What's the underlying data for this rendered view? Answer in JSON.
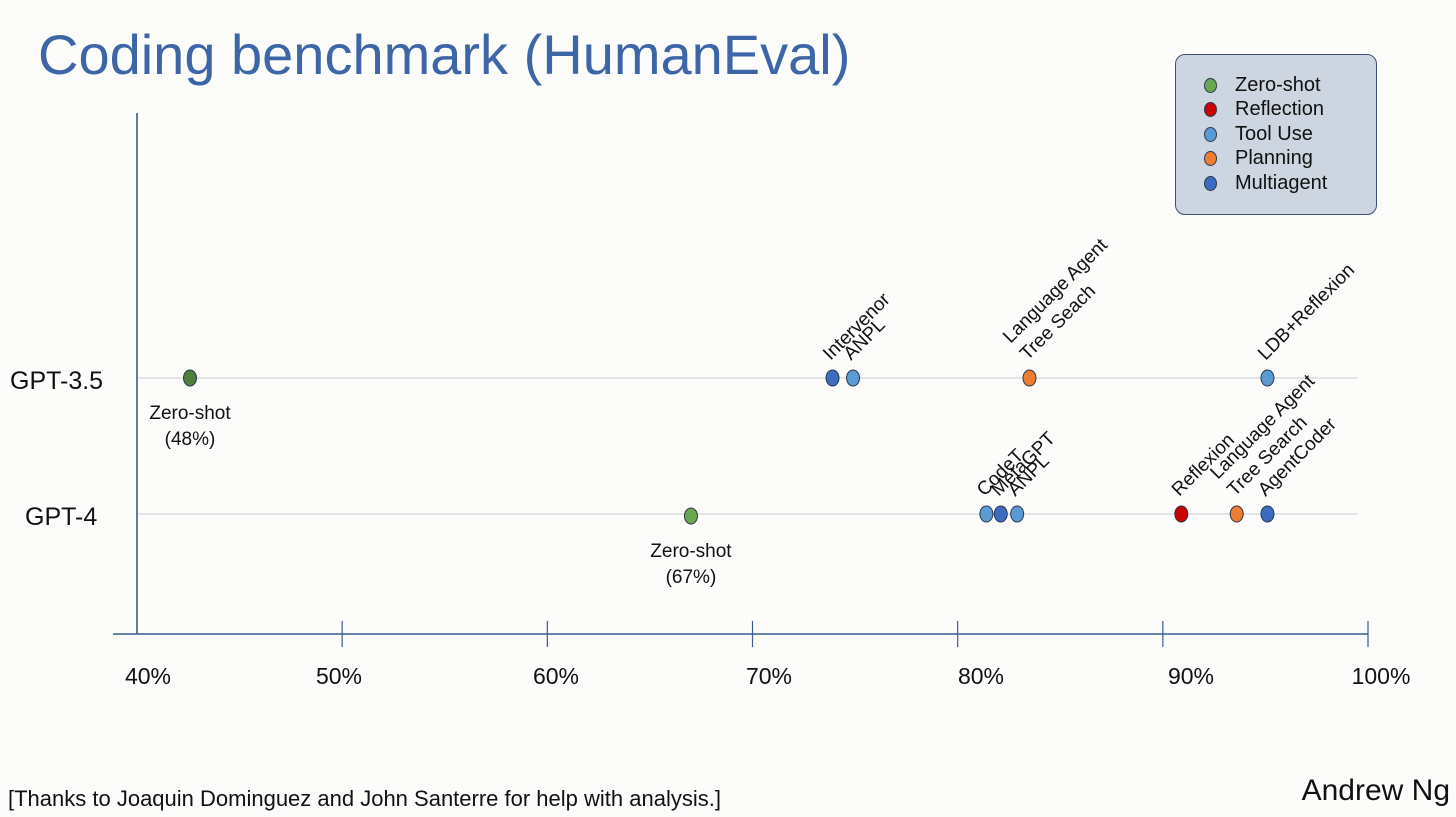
{
  "slide": {
    "title": "Coding benchmark (HumanEval)",
    "footer_note": "[Thanks to Joaquin Dominguez and John Santerre for help with analysis.]",
    "author": "Andrew Ng"
  },
  "chart_data": {
    "type": "scatter",
    "title": "Coding benchmark (HumanEval)",
    "xlim": [
      40,
      100
    ],
    "x_ticks": [
      40,
      50,
      60,
      70,
      80,
      90,
      100
    ],
    "x_tick_labels": [
      "40%",
      "50%",
      "60%",
      "70%",
      "80%",
      "90%",
      "100%"
    ],
    "categories": [
      "GPT-3.5",
      "GPT-4"
    ],
    "legend": {
      "placement": "top-right",
      "entries": [
        {
          "name": "Zero-shot",
          "color": "#6aa84f"
        },
        {
          "name": "Reflection",
          "color": "#cc0000"
        },
        {
          "name": "Tool Use",
          "color": "#5b9bd5"
        },
        {
          "name": "Planning",
          "color": "#ed7d31"
        },
        {
          "name": "Multiagent",
          "color": "#3c6cc0"
        }
      ]
    },
    "points": [
      {
        "model": "GPT-3.5",
        "x": 48,
        "category": "Zero-shot",
        "color": "#4f7f3a",
        "label_lines": [
          "Zero-shot",
          "(48%)"
        ],
        "label_style": "below"
      },
      {
        "model": "GPT-3.5",
        "x": 73.9,
        "category": "Multiagent",
        "color": "#3c6cc0",
        "label_lines": [
          "Intervenor"
        ],
        "label_style": "rotated"
      },
      {
        "model": "GPT-3.5",
        "x": 74.9,
        "category": "Tool Use",
        "color": "#5b9bd5",
        "label_lines": [
          "ANPL"
        ],
        "label_style": "rotated"
      },
      {
        "model": "GPT-3.5",
        "x": 83.5,
        "category": "Planning",
        "color": "#ed7d31",
        "label_lines": [
          "Language Agent",
          "Tree Seach"
        ],
        "label_style": "rotated"
      },
      {
        "model": "GPT-3.5",
        "x": 95.1,
        "category": "Tool Use",
        "color": "#5b9bd5",
        "label_lines": [
          "LDB+Reflexion"
        ],
        "label_style": "rotated"
      },
      {
        "model": "GPT-4",
        "x": 67,
        "category": "Zero-shot",
        "color": "#6aa84f",
        "label_lines": [
          "Zero-shot",
          "(67%)"
        ],
        "label_style": "below"
      },
      {
        "model": "GPT-4",
        "x": 81.4,
        "category": "Tool Use",
        "color": "#5b9bd5",
        "label_lines": [
          "CodeT"
        ],
        "label_style": "rotated"
      },
      {
        "model": "GPT-4",
        "x": 82.1,
        "category": "Multiagent",
        "color": "#3c6cc0",
        "label_lines": [
          "MetaGPT"
        ],
        "label_style": "rotated"
      },
      {
        "model": "GPT-4",
        "x": 82.9,
        "category": "Tool Use",
        "color": "#5b9bd5",
        "label_lines": [
          "ANPL"
        ],
        "label_style": "rotated"
      },
      {
        "model": "GPT-4",
        "x": 90.9,
        "category": "Reflection",
        "color": "#cc0000",
        "label_lines": [
          "Reflexion"
        ],
        "label_style": "rotated"
      },
      {
        "model": "GPT-4",
        "x": 93.6,
        "category": "Planning",
        "color": "#ed7d31",
        "label_lines": [
          "Language Agent",
          "Tree Search"
        ],
        "label_style": "rotated"
      },
      {
        "model": "GPT-4",
        "x": 95.1,
        "category": "Multiagent",
        "color": "#3c6cc0",
        "label_lines": [
          "AgentCoder"
        ],
        "label_style": "rotated"
      }
    ]
  }
}
